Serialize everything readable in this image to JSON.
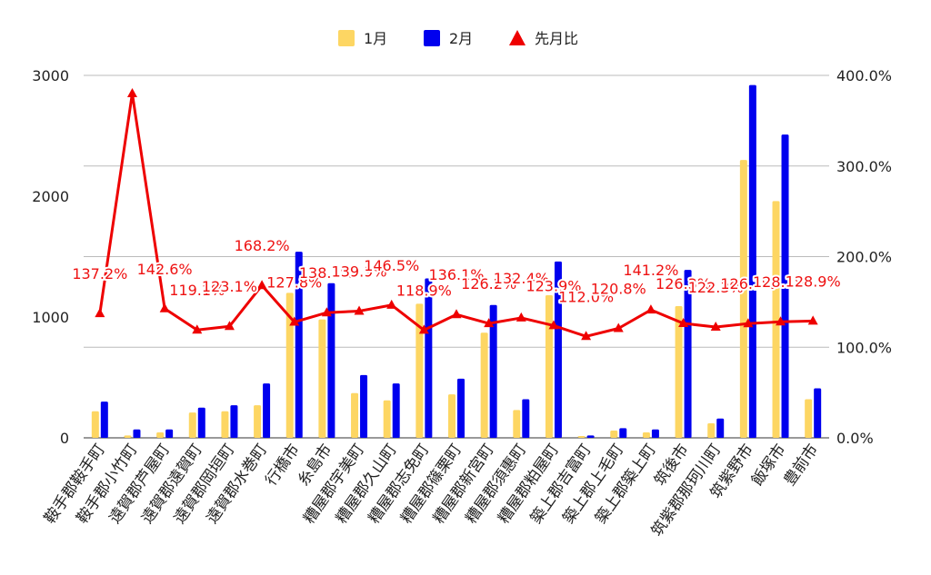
{
  "chart_data": {
    "type": "bar",
    "combo": "bar+line",
    "categories": [
      "鞍手郡鞍手町",
      "鞍手郡小竹町",
      "遠賀郡芦屋町",
      "遠賀郡遠賀町",
      "遠賀郡岡垣町",
      "遠賀郡水巻町",
      "行橋市",
      "糸島市",
      "糟屋郡宇美町",
      "糟屋郡久山町",
      "糟屋郡志免町",
      "糟屋郡篠栗町",
      "糟屋郡新宮町",
      "糟屋郡須惠町",
      "糟屋郡粕屋町",
      "築上郡吉富町",
      "築上郡上毛町",
      "築上郡築上町",
      "筑後市",
      "筑紫郡那珂川町",
      "筑紫野市",
      "飯塚市",
      "豊前市"
    ],
    "series": [
      {
        "name": "1月",
        "type": "bar",
        "axis": "left",
        "color": "#fdd663",
        "values": [
          220,
          20,
          45,
          210,
          220,
          270,
          1200,
          980,
          370,
          310,
          1110,
          360,
          870,
          230,
          1180,
          15,
          60,
          45,
          1090,
          120,
          2300,
          1960,
          320
        ]
      },
      {
        "name": "2月",
        "type": "bar",
        "axis": "left",
        "color": "#0000ee",
        "values": [
          300,
          70,
          70,
          250,
          270,
          450,
          1540,
          1280,
          520,
          450,
          1320,
          490,
          1100,
          320,
          1460,
          20,
          80,
          70,
          1390,
          160,
          2920,
          2510,
          410
        ]
      },
      {
        "name": "先月比",
        "type": "line",
        "axis": "right",
        "color": "#ee0000",
        "values": [
          137.2,
          380,
          142.6,
          119.1,
          123.1,
          168.2,
          127.8,
          138.1,
          139.9,
          146.5,
          118.9,
          136.1,
          126.2,
          132.4,
          123.9,
          112.0,
          120.8,
          141.2,
          126.3,
          122.3,
          126.1,
          128.1,
          128.9
        ],
        "labels": [
          "137.2%",
          "",
          "142.6%",
          "119.1%",
          "123.1%",
          "168.2%",
          "127.8%",
          "138.1%",
          "139.9%",
          "146.5%",
          "118.9%",
          "136.1%",
          "126.2%",
          "132.4%",
          "123.9%",
          "112.0%",
          "120.8%",
          "141.2%",
          "126.3%",
          "122.3%",
          "126.1%",
          "128.1%",
          "128.9%"
        ]
      }
    ],
    "y_left": {
      "ticks": [
        "0",
        "1000",
        "2000",
        "3000"
      ],
      "min": 0,
      "max": 3000
    },
    "y_right": {
      "ticks": [
        "0.0%",
        "100.0%",
        "200.0%",
        "300.0%",
        "400.0%"
      ],
      "min": 0,
      "max": 400
    },
    "legend_position": "top-center",
    "grid": true
  }
}
